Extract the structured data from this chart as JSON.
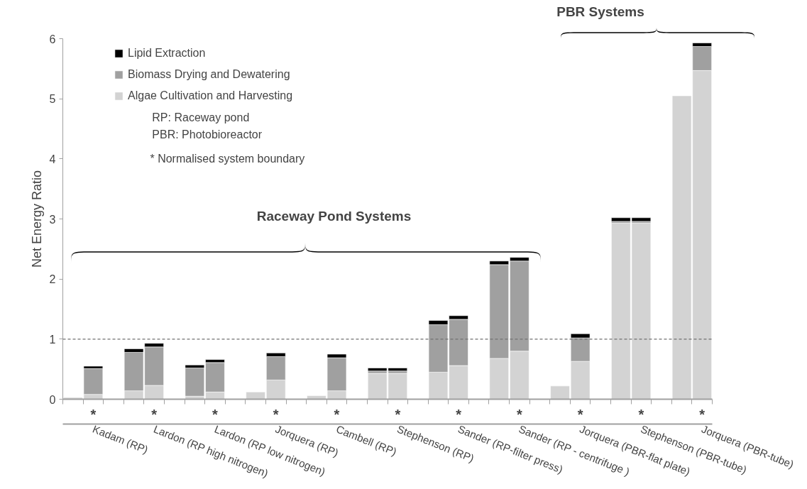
{
  "chart_data": {
    "type": "bar",
    "stacked": true,
    "ylabel": "Net Energy Ratio",
    "categories": [
      null,
      "Kadam (RP)",
      null,
      null,
      "Lardon (RP high nitrogen)",
      null,
      null,
      "Lardon (RP low nitrogen)",
      null,
      null,
      "Jorquera (RP)",
      null,
      null,
      "Cambell (RP)",
      null,
      null,
      "Stephenson (RP)",
      null,
      null,
      "Sander (RP-filter press)",
      null,
      null,
      "Sander (RP - centrifuge )",
      null,
      null,
      "Jorquera  (PBR-flat plate)",
      null,
      null,
      "Stephenson (PBR-tube)",
      null,
      null,
      "Jorquera (PBR-tube)"
    ],
    "series": [
      {
        "name": "Algae Cultivation and Harvesting",
        "color": "#d3d3d3",
        "values": [
          0.03,
          0.08,
          null,
          0.14,
          0.23,
          null,
          0.05,
          0.12,
          null,
          0.12,
          0.32,
          null,
          0.06,
          0.14,
          null,
          0.43,
          0.43,
          null,
          0.45,
          0.56,
          null,
          0.68,
          0.8,
          null,
          0.22,
          0.63,
          null,
          2.93,
          2.93,
          null,
          5.05,
          5.47
        ]
      },
      {
        "name": "Biomass Drying and Dewatering",
        "color": "#a0a0a0",
        "values": [
          null,
          0.43,
          null,
          0.64,
          0.64,
          null,
          0.47,
          0.49,
          null,
          null,
          0.39,
          null,
          null,
          0.55,
          null,
          0.04,
          0.04,
          null,
          0.79,
          0.77,
          null,
          1.56,
          1.5,
          null,
          null,
          0.39,
          null,
          0.03,
          0.03,
          null,
          null,
          0.4
        ]
      },
      {
        "name": "Lipid Extraction",
        "color": "#000000",
        "values": [
          null,
          0.04,
          null,
          0.06,
          0.06,
          null,
          0.05,
          0.05,
          null,
          null,
          0.06,
          null,
          null,
          0.06,
          null,
          0.05,
          0.05,
          null,
          0.07,
          0.06,
          null,
          0.06,
          0.06,
          null,
          null,
          0.07,
          null,
          0.06,
          0.06,
          null,
          null,
          0.06
        ]
      }
    ],
    "ylim": [
      0,
      6
    ],
    "yticks": [
      0,
      1,
      2,
      3,
      4,
      5,
      6
    ],
    "grid": false,
    "legend": "top left",
    "ref_lines": [
      {
        "axis": "y",
        "value": 1,
        "color": "#707070",
        "line_style": "dashed"
      }
    ],
    "annotations": [
      "RP: Raceway pond",
      "PBR: Photobioreactor",
      "* Normalised system boundary",
      "Raceway Pond Systems",
      "PBR Systems",
      "*",
      "*",
      "*",
      "*",
      "*",
      "*",
      "*",
      "*",
      "*",
      "*",
      "*"
    ]
  }
}
